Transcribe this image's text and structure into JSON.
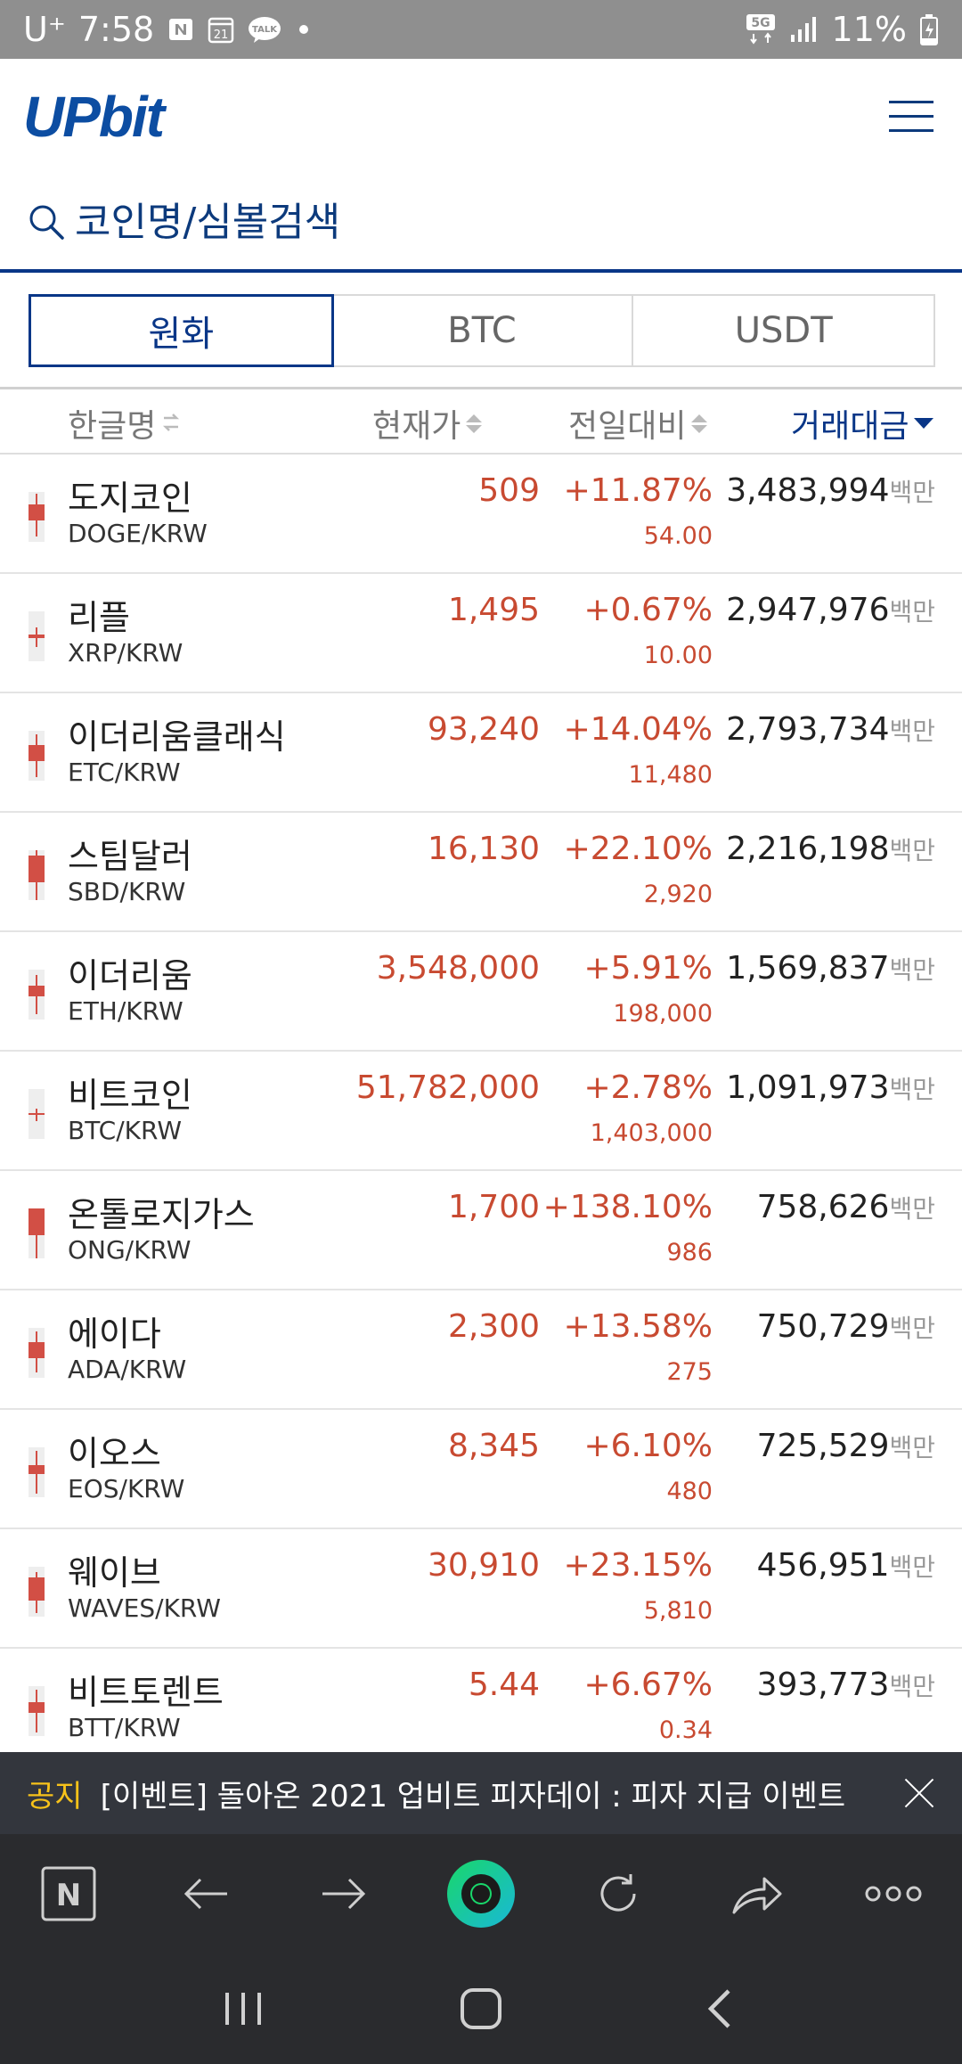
{
  "status_bar": {
    "carrier": "U⁺",
    "time": "7:58",
    "calendar_day": "21",
    "talk_label": "TALK",
    "network": "5G",
    "battery": "11%"
  },
  "app": {
    "logo": "UPbit"
  },
  "search": {
    "placeholder": "코인명/심볼검색"
  },
  "market_tabs": [
    "원화",
    "BTC",
    "USDT"
  ],
  "active_tab": "원화",
  "columns": {
    "name": "한글명",
    "price": "현재가",
    "change": "전일대비",
    "volume": "거래대금"
  },
  "coins": [
    {
      "name": "도지코인",
      "symbol": "DOGE/KRW",
      "price": "509",
      "change_rate": "+11.87%",
      "change_amount": "54.00",
      "volume": "3,483,994",
      "unit": "백만"
    },
    {
      "name": "리플",
      "symbol": "XRP/KRW",
      "price": "1,495",
      "change_rate": "+0.67%",
      "change_amount": "10.00",
      "volume": "2,947,976",
      "unit": "백만"
    },
    {
      "name": "이더리움클래식",
      "symbol": "ETC/KRW",
      "price": "93,240",
      "change_rate": "+14.04%",
      "change_amount": "11,480",
      "volume": "2,793,734",
      "unit": "백만"
    },
    {
      "name": "스팀달러",
      "symbol": "SBD/KRW",
      "price": "16,130",
      "change_rate": "+22.10%",
      "change_amount": "2,920",
      "volume": "2,216,198",
      "unit": "백만"
    },
    {
      "name": "이더리움",
      "symbol": "ETH/KRW",
      "price": "3,548,000",
      "change_rate": "+5.91%",
      "change_amount": "198,000",
      "volume": "1,569,837",
      "unit": "백만"
    },
    {
      "name": "비트코인",
      "symbol": "BTC/KRW",
      "price": "51,782,000",
      "change_rate": "+2.78%",
      "change_amount": "1,403,000",
      "volume": "1,091,973",
      "unit": "백만"
    },
    {
      "name": "온톨로지가스",
      "symbol": "ONG/KRW",
      "price": "1,700",
      "change_rate": "+138.10%",
      "change_amount": "986",
      "volume": "758,626",
      "unit": "백만"
    },
    {
      "name": "에이다",
      "symbol": "ADA/KRW",
      "price": "2,300",
      "change_rate": "+13.58%",
      "change_amount": "275",
      "volume": "750,729",
      "unit": "백만"
    },
    {
      "name": "이오스",
      "symbol": "EOS/KRW",
      "price": "8,345",
      "change_rate": "+6.10%",
      "change_amount": "480",
      "volume": "725,529",
      "unit": "백만"
    },
    {
      "name": "웨이브",
      "symbol": "WAVES/KRW",
      "price": "30,910",
      "change_rate": "+23.15%",
      "change_amount": "5,810",
      "volume": "456,951",
      "unit": "백만"
    },
    {
      "name": "비트토렌트",
      "symbol": "BTT/KRW",
      "price": "5.44",
      "change_rate": "+6.67%",
      "change_amount": "0.34",
      "volume": "393,773",
      "unit": "백만"
    }
  ],
  "notice": {
    "label": "공지",
    "text": "[이벤트] 돌아온 2021 업비트 피자데이 : 피자 지급 이벤트"
  },
  "browser_bar": {
    "naver_label": "N"
  },
  "colors": {
    "brand": "#093687",
    "rise": "#c84a31",
    "notice_label": "#f7c21a"
  }
}
